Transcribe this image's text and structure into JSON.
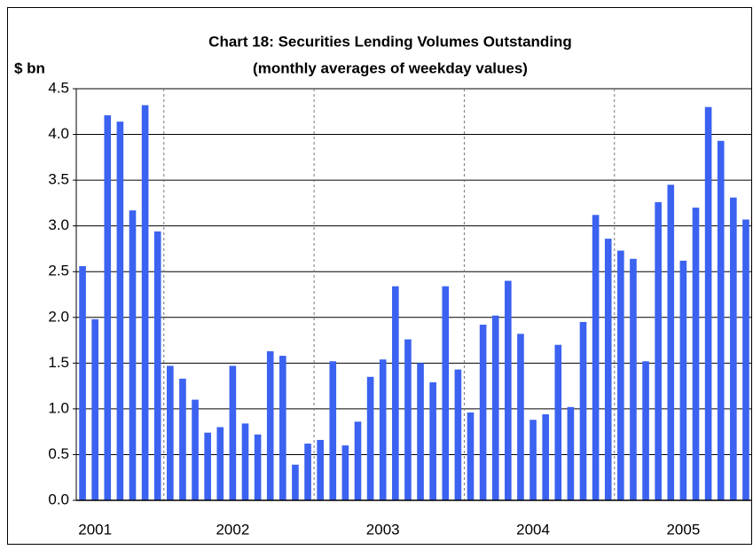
{
  "chart_data": {
    "type": "bar",
    "title": "Chart 18: Securities Lending Volumes Outstanding",
    "subtitle": "(monthly averages of weekday values)",
    "y_label": "$ bn",
    "categories": [
      null,
      "2001",
      null,
      null,
      null,
      null,
      null,
      null,
      null,
      null,
      null,
      null,
      "2002",
      null,
      null,
      null,
      null,
      null,
      null,
      null,
      null,
      null,
      null,
      null,
      "2003",
      null,
      null,
      null,
      null,
      null,
      null,
      null,
      null,
      null,
      null,
      null,
      "2004",
      null,
      null,
      null,
      null,
      null,
      null,
      null,
      null,
      null,
      null,
      null,
      "2005",
      null,
      null,
      null,
      null,
      null
    ],
    "values": [
      2.56,
      1.98,
      4.21,
      4.14,
      3.17,
      4.32,
      2.94,
      1.47,
      1.33,
      1.1,
      0.74,
      0.8,
      1.47,
      0.84,
      0.72,
      1.63,
      1.58,
      0.39,
      0.62,
      0.66,
      1.52,
      0.6,
      0.86,
      1.35,
      1.54,
      2.34,
      1.76,
      1.5,
      1.29,
      2.34,
      1.43,
      0.96,
      1.92,
      2.02,
      2.4,
      1.82,
      0.88,
      0.94,
      1.7,
      1.02,
      1.95,
      3.12,
      2.86,
      2.73,
      2.64,
      1.52,
      3.26,
      3.45,
      2.62,
      3.2,
      4.3,
      3.93,
      3.31,
      3.07
    ],
    "color": "#3b62f0",
    "ylim": [
      0,
      4.5
    ],
    "yticks": [
      {
        "value": 0,
        "label": "0.0"
      },
      0.5,
      {
        "value": 1,
        "label": "1.0"
      },
      1.5,
      {
        "value": 2,
        "label": "2.0"
      },
      2.5,
      {
        "value": 3,
        "label": "3.0"
      },
      3.5,
      {
        "value": 4,
        "label": "4.0"
      },
      4.5
    ],
    "grid": true
  }
}
